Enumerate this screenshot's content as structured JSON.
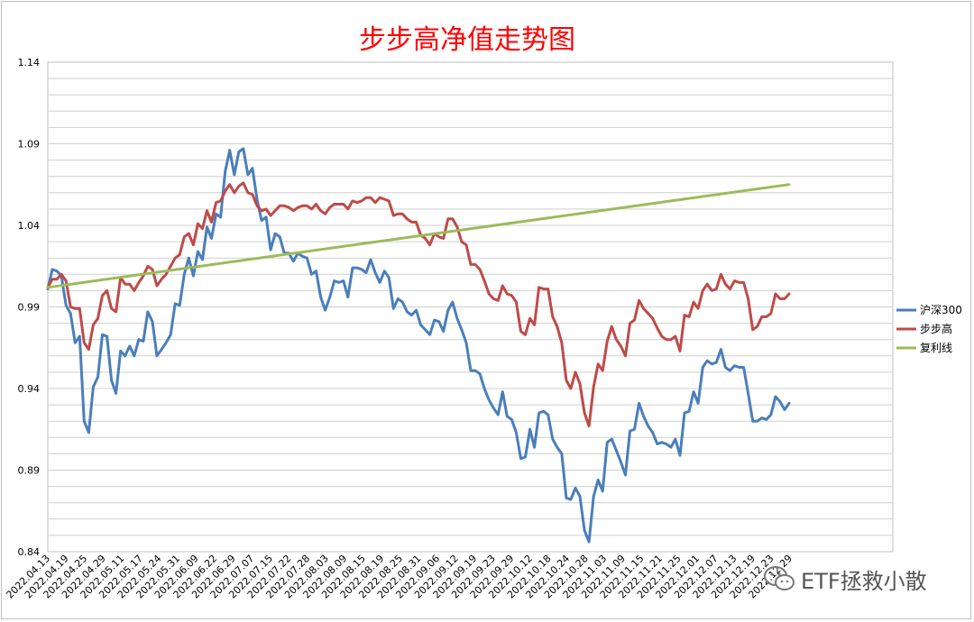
{
  "chart_data": {
    "type": "line",
    "title": "步步高净值走势图",
    "ylim": [
      0.84,
      1.14
    ],
    "yticks": [
      "0.84",
      "0.89",
      "0.94",
      "0.99",
      "1.04",
      "1.09",
      "1.14"
    ],
    "grid": "horizontal",
    "legend_position": "right",
    "xticks": [
      "2022.04.13",
      "2022.04.19",
      "2022.04.25",
      "2022.04.29",
      "2022.05.11",
      "2022.05.17",
      "2022.05.24",
      "2022.05.31",
      "2022.06.09",
      "2022.06.22",
      "2022.06.29",
      "2022.07.07",
      "2022.07.15",
      "2022.07.22",
      "2022.07.28",
      "2022.08.03",
      "2022.08.09",
      "2022.08.15",
      "2022.08.19",
      "2022.08.25",
      "2022.08.31",
      "2022.09.06",
      "2022.09.12",
      "2022.09.19",
      "2022.09.23",
      "2022.09.29",
      "2022.10.12",
      "2022.10.18",
      "2022.10.24",
      "2022.10.28",
      "2022.11.03",
      "2022.11.09",
      "2022.11.15",
      "2022.11.21",
      "2022.11.25",
      "2022.12.01",
      "2022.12.07",
      "2022.12.13",
      "2022.12.19",
      "2022.12.23",
      "2022.12.29"
    ],
    "series": [
      {
        "name": "沪深300",
        "color": "#4a7ebb",
        "values": [
          1.001,
          1.013,
          1.012,
          1.009,
          0.991,
          0.986,
          0.968,
          0.972,
          0.92,
          0.913,
          0.941,
          0.947,
          0.973,
          0.972,
          0.945,
          0.937,
          0.963,
          0.96,
          0.966,
          0.96,
          0.97,
          0.969,
          0.987,
          0.981,
          0.96,
          0.964,
          0.968,
          0.973,
          0.992,
          0.991,
          1.01,
          1.02,
          1.009,
          1.024,
          1.019,
          1.039,
          1.032,
          1.047,
          1.045,
          1.073,
          1.086,
          1.071,
          1.085,
          1.087,
          1.071,
          1.075,
          1.056,
          1.043,
          1.045,
          1.025,
          1.035,
          1.033,
          1.023,
          1.023,
          1.018,
          1.023,
          1.021,
          1.02,
          1.01,
          1.012,
          0.996,
          0.988,
          0.996,
          1.006,
          1.005,
          1.006,
          0.996,
          1.014,
          1.014,
          1.013,
          1.011,
          1.019,
          1.011,
          1.005,
          1.012,
          1.008,
          0.989,
          0.995,
          0.993,
          0.987,
          0.985,
          0.988,
          0.979,
          0.976,
          0.973,
          0.982,
          0.981,
          0.975,
          0.988,
          0.993,
          0.983,
          0.976,
          0.968,
          0.951,
          0.951,
          0.949,
          0.94,
          0.933,
          0.928,
          0.924,
          0.938,
          0.923,
          0.921,
          0.913,
          0.897,
          0.898,
          0.915,
          0.904,
          0.925,
          0.926,
          0.924,
          0.909,
          0.904,
          0.9,
          0.873,
          0.872,
          0.879,
          0.874,
          0.853,
          0.846,
          0.874,
          0.884,
          0.877,
          0.907,
          0.909,
          0.902,
          0.895,
          0.887,
          0.914,
          0.915,
          0.931,
          0.923,
          0.917,
          0.913,
          0.906,
          0.907,
          0.906,
          0.904,
          0.909,
          0.899,
          0.925,
          0.926,
          0.938,
          0.931,
          0.953,
          0.957,
          0.955,
          0.956,
          0.964,
          0.953,
          0.951,
          0.954,
          0.953,
          0.953,
          0.937,
          0.92,
          0.92,
          0.922,
          0.921,
          0.924,
          0.935,
          0.932,
          0.927,
          0.931
        ]
      },
      {
        "name": "步步高",
        "color": "#be4b48",
        "values": [
          1.002,
          1.007,
          1.007,
          1.01,
          1.006,
          0.99,
          0.989,
          0.989,
          0.968,
          0.964,
          0.979,
          0.983,
          0.997,
          1.0,
          0.989,
          0.987,
          1.008,
          1.004,
          1.004,
          1.0,
          1.005,
          1.009,
          1.015,
          1.013,
          1.003,
          1.007,
          1.01,
          1.015,
          1.02,
          1.022,
          1.033,
          1.035,
          1.028,
          1.041,
          1.038,
          1.049,
          1.042,
          1.054,
          1.055,
          1.061,
          1.065,
          1.06,
          1.064,
          1.066,
          1.06,
          1.059,
          1.052,
          1.049,
          1.05,
          1.046,
          1.049,
          1.052,
          1.052,
          1.051,
          1.049,
          1.051,
          1.052,
          1.052,
          1.05,
          1.053,
          1.049,
          1.047,
          1.051,
          1.053,
          1.053,
          1.053,
          1.05,
          1.055,
          1.054,
          1.055,
          1.057,
          1.057,
          1.054,
          1.057,
          1.056,
          1.055,
          1.046,
          1.047,
          1.047,
          1.044,
          1.042,
          1.042,
          1.034,
          1.032,
          1.028,
          1.035,
          1.033,
          1.032,
          1.044,
          1.044,
          1.039,
          1.03,
          1.028,
          1.016,
          1.016,
          1.013,
          1.006,
          0.998,
          0.995,
          0.994,
          1.003,
          0.998,
          0.997,
          0.993,
          0.975,
          0.973,
          0.983,
          0.979,
          1.002,
          1.001,
          1.001,
          0.984,
          0.978,
          0.968,
          0.945,
          0.94,
          0.95,
          0.943,
          0.925,
          0.917,
          0.941,
          0.955,
          0.951,
          0.969,
          0.978,
          0.97,
          0.966,
          0.96,
          0.98,
          0.982,
          0.994,
          0.989,
          0.986,
          0.983,
          0.977,
          0.972,
          0.97,
          0.97,
          0.972,
          0.963,
          0.985,
          0.984,
          0.993,
          0.989,
          1.0,
          1.004,
          1.0,
          1.001,
          1.01,
          1.004,
          1.001,
          1.006,
          1.005,
          1.005,
          0.995,
          0.976,
          0.978,
          0.984,
          0.984,
          0.986,
          0.998,
          0.995,
          0.995,
          0.998
        ]
      },
      {
        "name": "复利线",
        "color": "#9bbb59",
        "values": [
          1.002,
          1.065
        ]
      }
    ]
  },
  "watermark": {
    "text": "ETF拯救小散",
    "icon": "wechat-icon"
  }
}
